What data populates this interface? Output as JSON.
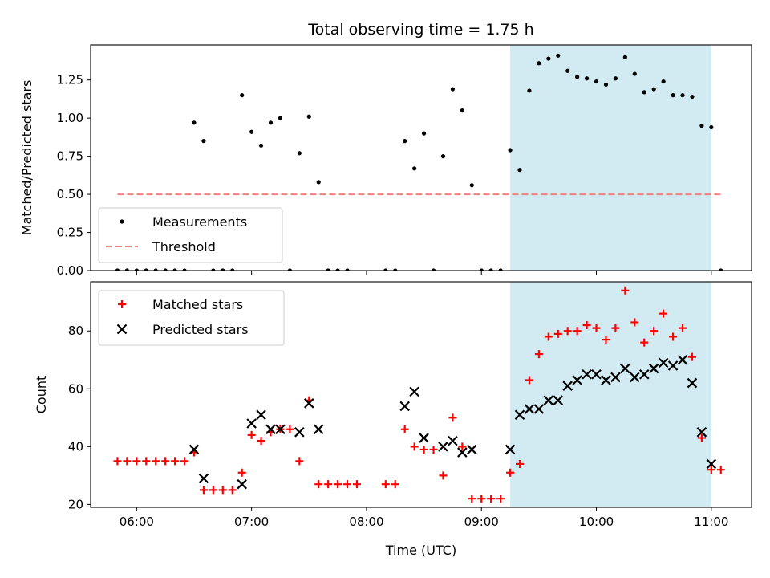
{
  "title": "Total observing time = 1.75 h",
  "xlabel": "Time (UTC)",
  "x_ticks": [
    "06:00",
    "07:00",
    "08:00",
    "09:00",
    "10:00",
    "11:00"
  ],
  "colors": {
    "measurement": "#000000",
    "threshold": "#f07f7f",
    "matched": "#ff0000",
    "predicted": "#000000",
    "window": "#add8e6"
  },
  "chart_data": [
    {
      "type": "scatter",
      "ylabel": "Matched/Predicted stars",
      "x_range": [
        "05:36",
        "11:21"
      ],
      "ylim": [
        0,
        1.48
      ],
      "y_ticks": [
        "0.00",
        "0.25",
        "0.50",
        "0.75",
        "1.00",
        "1.25"
      ],
      "y_tick_values": [
        0,
        0.25,
        0.5,
        0.75,
        1.0,
        1.25
      ],
      "shaded_window": [
        "09:15",
        "11:00"
      ],
      "legend_position": "lower left",
      "series": [
        {
          "name": "Measurements",
          "marker": "dot",
          "points": [
            [
              "05:50",
              0
            ],
            [
              "05:55",
              0
            ],
            [
              "06:00",
              0
            ],
            [
              "06:05",
              0
            ],
            [
              "06:10",
              0
            ],
            [
              "06:15",
              0
            ],
            [
              "06:20",
              0
            ],
            [
              "06:25",
              0
            ],
            [
              "06:30",
              0.97
            ],
            [
              "06:35",
              0.85
            ],
            [
              "06:40",
              0
            ],
            [
              "06:45",
              0
            ],
            [
              "06:50",
              0
            ],
            [
              "06:55",
              1.15
            ],
            [
              "07:00",
              0.91
            ],
            [
              "07:05",
              0.82
            ],
            [
              "07:10",
              0.97
            ],
            [
              "07:15",
              1.0
            ],
            [
              "07:20",
              0
            ],
            [
              "07:25",
              0.77
            ],
            [
              "07:30",
              1.01
            ],
            [
              "07:35",
              0.58
            ],
            [
              "07:40",
              0
            ],
            [
              "07:45",
              0
            ],
            [
              "07:50",
              0
            ],
            [
              "08:10",
              0
            ],
            [
              "08:15",
              0
            ],
            [
              "08:20",
              0.85
            ],
            [
              "08:25",
              0.67
            ],
            [
              "08:30",
              0.9
            ],
            [
              "08:35",
              0
            ],
            [
              "08:40",
              0.75
            ],
            [
              "08:45",
              1.19
            ],
            [
              "08:50",
              1.05
            ],
            [
              "08:55",
              0.56
            ],
            [
              "09:00",
              0
            ],
            [
              "09:05",
              0
            ],
            [
              "09:10",
              0
            ],
            [
              "09:15",
              0.79
            ],
            [
              "09:20",
              0.66
            ],
            [
              "09:25",
              1.18
            ],
            [
              "09:30",
              1.36
            ],
            [
              "09:35",
              1.39
            ],
            [
              "09:40",
              1.41
            ],
            [
              "09:45",
              1.31
            ],
            [
              "09:50",
              1.27
            ],
            [
              "09:55",
              1.26
            ],
            [
              "10:00",
              1.24
            ],
            [
              "10:05",
              1.22
            ],
            [
              "10:10",
              1.26
            ],
            [
              "10:15",
              1.4
            ],
            [
              "10:20",
              1.29
            ],
            [
              "10:25",
              1.17
            ],
            [
              "10:30",
              1.19
            ],
            [
              "10:35",
              1.24
            ],
            [
              "10:40",
              1.15
            ],
            [
              "10:45",
              1.15
            ],
            [
              "10:50",
              1.14
            ],
            [
              "10:55",
              0.95
            ],
            [
              "11:00",
              0.94
            ],
            [
              "11:05",
              0
            ]
          ]
        },
        {
          "name": "Threshold",
          "marker": "dashed-line",
          "points": [
            [
              "05:50",
              0.5
            ],
            [
              "11:05",
              0.5
            ]
          ]
        }
      ]
    },
    {
      "type": "scatter",
      "ylabel": "Count",
      "x_range": [
        "05:36",
        "11:21"
      ],
      "ylim": [
        19,
        97
      ],
      "y_ticks": [
        "20",
        "40",
        "60",
        "80"
      ],
      "y_tick_values": [
        20,
        40,
        60,
        80
      ],
      "shaded_window": [
        "09:15",
        "11:00"
      ],
      "legend_position": "upper left",
      "series": [
        {
          "name": "Matched stars",
          "marker": "plus",
          "points": [
            [
              "05:50",
              35
            ],
            [
              "05:55",
              35
            ],
            [
              "06:00",
              35
            ],
            [
              "06:05",
              35
            ],
            [
              "06:10",
              35
            ],
            [
              "06:15",
              35
            ],
            [
              "06:20",
              35
            ],
            [
              "06:25",
              35
            ],
            [
              "06:30",
              38
            ],
            [
              "06:35",
              25
            ],
            [
              "06:40",
              25
            ],
            [
              "06:45",
              25
            ],
            [
              "06:50",
              25
            ],
            [
              "06:55",
              31
            ],
            [
              "07:00",
              44
            ],
            [
              "07:05",
              42
            ],
            [
              "07:10",
              45
            ],
            [
              "07:15",
              46
            ],
            [
              "07:20",
              46
            ],
            [
              "07:25",
              35
            ],
            [
              "07:30",
              56
            ],
            [
              "07:35",
              27
            ],
            [
              "07:40",
              27
            ],
            [
              "07:45",
              27
            ],
            [
              "07:50",
              27
            ],
            [
              "07:55",
              27
            ],
            [
              "08:10",
              27
            ],
            [
              "08:15",
              27
            ],
            [
              "08:20",
              46
            ],
            [
              "08:25",
              40
            ],
            [
              "08:30",
              39
            ],
            [
              "08:35",
              39
            ],
            [
              "08:40",
              30
            ],
            [
              "08:45",
              50
            ],
            [
              "08:50",
              40
            ],
            [
              "08:55",
              22
            ],
            [
              "09:00",
              22
            ],
            [
              "09:05",
              22
            ],
            [
              "09:10",
              22
            ],
            [
              "09:15",
              31
            ],
            [
              "09:20",
              34
            ],
            [
              "09:25",
              63
            ],
            [
              "09:30",
              72
            ],
            [
              "09:35",
              78
            ],
            [
              "09:40",
              79
            ],
            [
              "09:45",
              80
            ],
            [
              "09:50",
              80
            ],
            [
              "09:55",
              82
            ],
            [
              "10:00",
              81
            ],
            [
              "10:05",
              77
            ],
            [
              "10:10",
              81
            ],
            [
              "10:15",
              94
            ],
            [
              "10:20",
              83
            ],
            [
              "10:25",
              76
            ],
            [
              "10:30",
              80
            ],
            [
              "10:35",
              86
            ],
            [
              "10:40",
              78
            ],
            [
              "10:45",
              81
            ],
            [
              "10:50",
              71
            ],
            [
              "10:55",
              43
            ],
            [
              "11:00",
              32
            ],
            [
              "11:05",
              32
            ]
          ]
        },
        {
          "name": "Predicted stars",
          "marker": "x",
          "points": [
            [
              "06:30",
              39
            ],
            [
              "06:35",
              29
            ],
            [
              "06:55",
              27
            ],
            [
              "07:00",
              48
            ],
            [
              "07:05",
              51
            ],
            [
              "07:10",
              46
            ],
            [
              "07:15",
              46
            ],
            [
              "07:25",
              45
            ],
            [
              "07:30",
              55
            ],
            [
              "07:35",
              46
            ],
            [
              "08:20",
              54
            ],
            [
              "08:25",
              59
            ],
            [
              "08:30",
              43
            ],
            [
              "08:40",
              40
            ],
            [
              "08:45",
              42
            ],
            [
              "08:50",
              38
            ],
            [
              "08:55",
              39
            ],
            [
              "09:15",
              39
            ],
            [
              "09:20",
              51
            ],
            [
              "09:25",
              53
            ],
            [
              "09:30",
              53
            ],
            [
              "09:35",
              56
            ],
            [
              "09:40",
              56
            ],
            [
              "09:45",
              61
            ],
            [
              "09:50",
              63
            ],
            [
              "09:55",
              65
            ],
            [
              "10:00",
              65
            ],
            [
              "10:05",
              63
            ],
            [
              "10:10",
              64
            ],
            [
              "10:15",
              67
            ],
            [
              "10:20",
              64
            ],
            [
              "10:25",
              65
            ],
            [
              "10:30",
              67
            ],
            [
              "10:35",
              69
            ],
            [
              "10:40",
              68
            ],
            [
              "10:45",
              70
            ],
            [
              "10:50",
              62
            ],
            [
              "10:55",
              45
            ],
            [
              "11:00",
              34
            ]
          ]
        }
      ]
    }
  ]
}
